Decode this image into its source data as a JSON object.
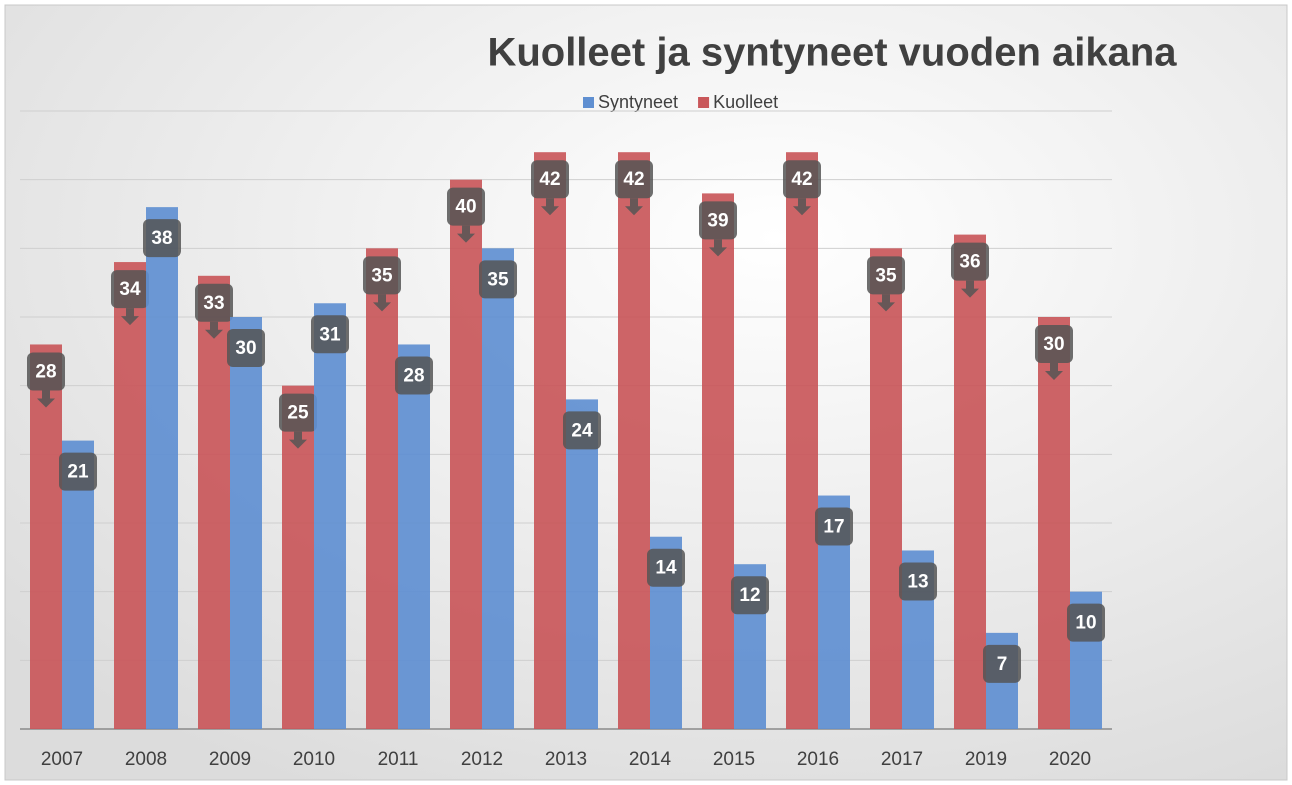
{
  "chart_data": {
    "type": "bar",
    "title": "Kuolleet ja syntyneet vuoden aikana",
    "categories": [
      "2007",
      "2008",
      "2009",
      "2010",
      "2011",
      "2012",
      "2013",
      "2014",
      "2015",
      "2016",
      "2017",
      "2019",
      "2020"
    ],
    "series": [
      {
        "name": "Kuolleet",
        "color": "#c9575a",
        "values": [
          28,
          34,
          33,
          25,
          35,
          40,
          42,
          42,
          39,
          42,
          35,
          36,
          30
        ]
      },
      {
        "name": "Syntyneet",
        "color": "#5f8fd1",
        "values": [
          21,
          38,
          30,
          31,
          28,
          35,
          24,
          14,
          12,
          17,
          13,
          7,
          10
        ]
      }
    ],
    "ylim": [
      0,
      45
    ],
    "yticks": [
      0,
      5,
      10,
      15,
      20,
      25,
      30,
      35,
      40,
      45
    ],
    "grid": true
  }
}
